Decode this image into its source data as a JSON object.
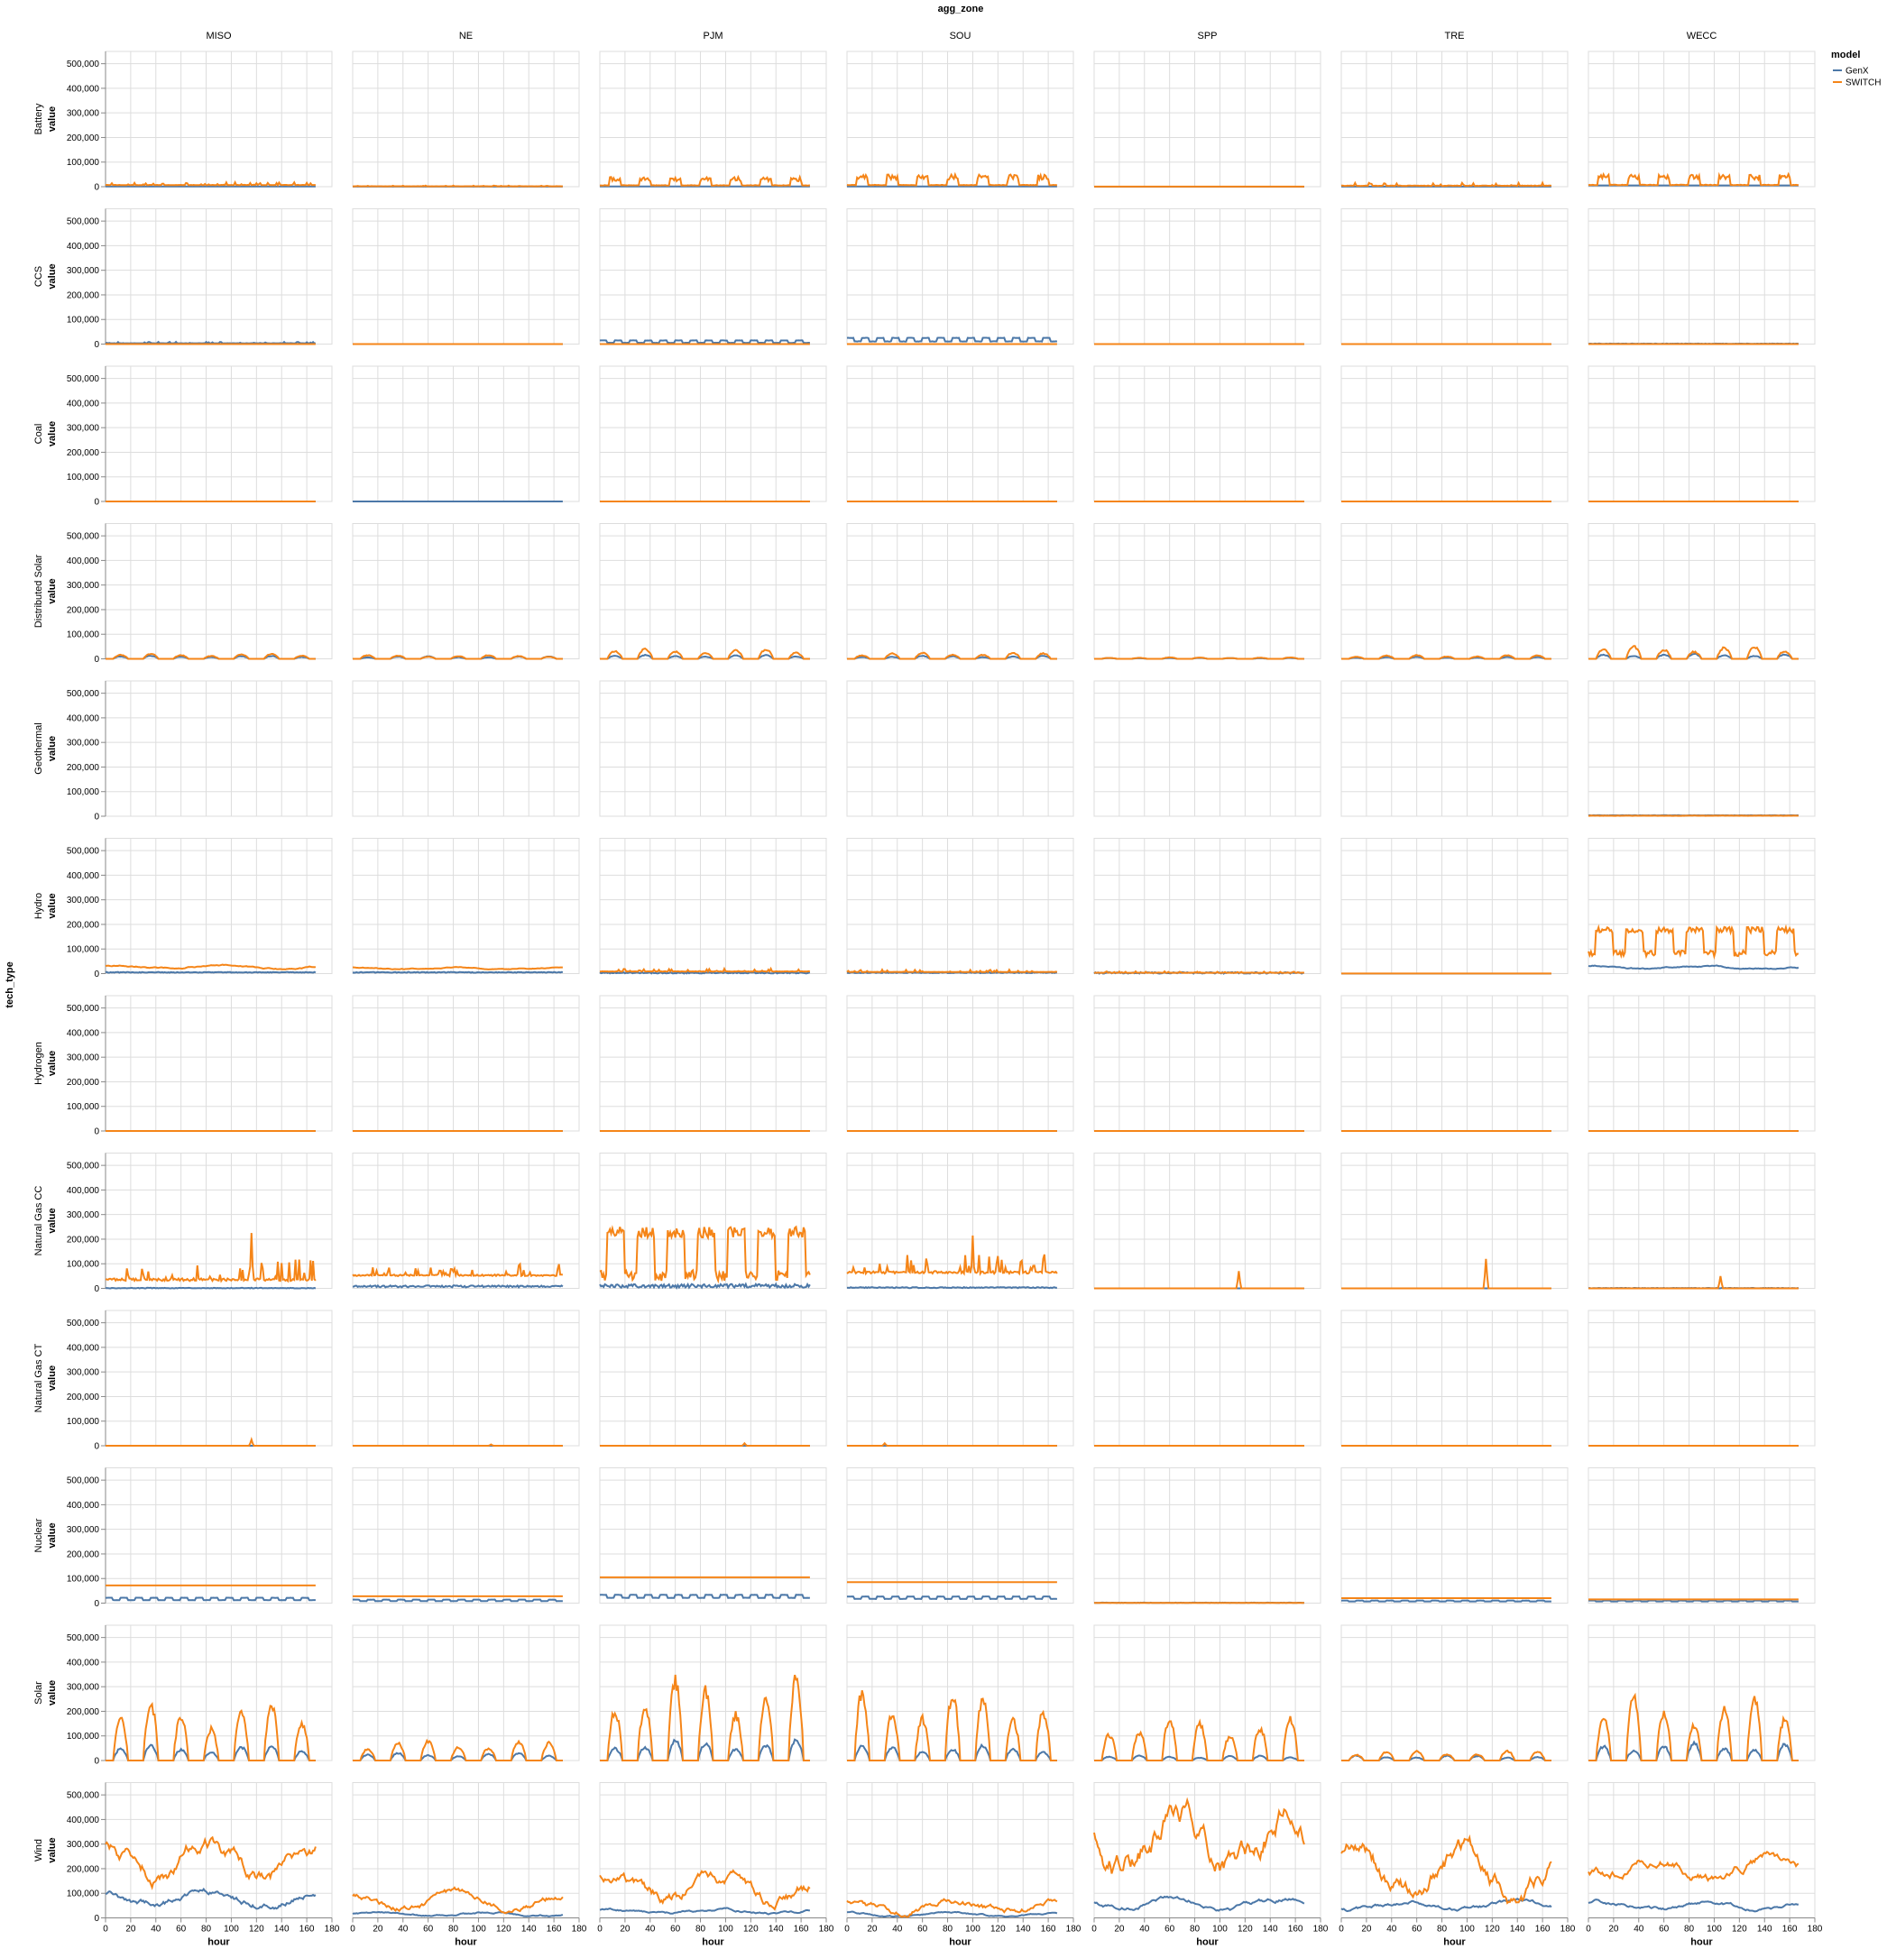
{
  "chart_data": {
    "type": "line",
    "facet_column_title": "agg_zone",
    "facet_row_title": "tech_type",
    "columns": [
      "MISO",
      "NE",
      "PJM",
      "SOU",
      "SPP",
      "TRE",
      "WECC"
    ],
    "rows": [
      "Battery",
      "CCS",
      "Coal",
      "Distributed Solar",
      "Geothermal",
      "Hydro",
      "Hydrogen",
      "Natural Gas CC",
      "Natural Gas CT",
      "Nuclear",
      "Solar",
      "Wind"
    ],
    "xlabel": "hour",
    "ylabel": "value",
    "xlim": [
      0,
      180
    ],
    "ylim": [
      0,
      550000
    ],
    "x_ticks": [
      0,
      20,
      40,
      60,
      80,
      100,
      120,
      140,
      160,
      180
    ],
    "y_ticks": [
      0,
      100000,
      200000,
      300000,
      400000,
      500000
    ],
    "y_tick_labels": [
      "0",
      "100,000",
      "200,000",
      "300,000",
      "400,000",
      "500,000"
    ],
    "grid": true,
    "legend": {
      "title": "model",
      "position": "top-right"
    },
    "hours": {
      "start": 0,
      "end": 167
    },
    "series": [
      {
        "name": "GenX",
        "color": "#4c78a8"
      },
      {
        "name": "SWITCH",
        "color": "#f58518"
      }
    ],
    "panels": {
      "Battery": {
        "MISO": {
          "GenX": 1000,
          "SWITCH": 6000,
          "SWITCH_amp": 12000,
          "SWITCH_pattern": "spiky"
        },
        "NE": {
          "GenX": 500,
          "SWITCH": 1500,
          "SWITCH_amp": 3000,
          "SWITCH_pattern": "spiky"
        },
        "PJM": {
          "GenX": 1000,
          "SWITCH": 15000,
          "SWITCH_amp": 35000,
          "SWITCH_pattern": "daily_spiky"
        },
        "SOU": {
          "GenX": 1000,
          "SWITCH": 18000,
          "SWITCH_amp": 45000,
          "SWITCH_pattern": "daily_spiky"
        },
        "SPP": {
          "GenX": 0,
          "SWITCH": 500,
          "SWITCH_amp": 0,
          "SWITCH_pattern": "flat"
        },
        "TRE": {
          "GenX": 500,
          "SWITCH": 3000,
          "SWITCH_amp": 15000,
          "SWITCH_pattern": "spiky"
        },
        "WECC": {
          "GenX": 5000,
          "SWITCH": 20000,
          "SWITCH_amp": 45000,
          "SWITCH_pattern": "daily_spiky"
        }
      },
      "CCS": {
        "MISO": {
          "GenX": 3000,
          "GenX_amp": 6000,
          "GenX_pattern": "spiky",
          "SWITCH": 0
        },
        "NE": {
          "GenX": 0,
          "SWITCH": 0
        },
        "PJM": {
          "GenX": 8000,
          "GenX_amp": 8000,
          "GenX_pattern": "steps",
          "SWITCH": 0
        },
        "SOU": {
          "GenX": 15000,
          "GenX_amp": 12000,
          "GenX_pattern": "steps",
          "SWITCH": 0
        },
        "SPP": {
          "GenX": 0,
          "SWITCH": 0
        },
        "TRE": {
          "GenX": 0,
          "SWITCH": 0
        },
        "WECC": {
          "GenX": 1500,
          "GenX_amp": 1500,
          "GenX_pattern": "noise",
          "SWITCH": 0
        }
      },
      "Coal": {
        "MISO": {
          "GenX": 0,
          "SWITCH": 0
        },
        "NE": {
          "GenX": 0,
          "SWITCH": null
        },
        "PJM": {
          "GenX": 0,
          "SWITCH": 0
        },
        "SOU": {
          "GenX": 0,
          "SWITCH": 0
        },
        "SPP": {
          "GenX": 0,
          "SWITCH": 0
        },
        "TRE": {
          "GenX": 0,
          "SWITCH": 0
        },
        "WECC": {
          "GenX": 0,
          "SWITCH": 0
        }
      },
      "Distributed Solar": {
        "MISO": {
          "GenX": 0,
          "GenX_amp": 12000,
          "GenX_pattern": "solar",
          "SWITCH": 0,
          "SWITCH_amp": 20000,
          "SWITCH_pattern": "solar"
        },
        "NE": {
          "GenX": 0,
          "GenX_amp": 10000,
          "GenX_pattern": "solar",
          "SWITCH": 0,
          "SWITCH_amp": 15000,
          "SWITCH_pattern": "solar"
        },
        "PJM": {
          "GenX": 0,
          "GenX_amp": 15000,
          "GenX_pattern": "solar",
          "SWITCH": 0,
          "SWITCH_amp": 40000,
          "SWITCH_pattern": "solar"
        },
        "SOU": {
          "GenX": 0,
          "GenX_amp": 12000,
          "GenX_pattern": "solar",
          "SWITCH": 0,
          "SWITCH_amp": 25000,
          "SWITCH_pattern": "solar"
        },
        "SPP": {
          "GenX": 0,
          "GenX_amp": 4000,
          "GenX_pattern": "solar",
          "SWITCH": 0,
          "SWITCH_amp": 6000,
          "SWITCH_pattern": "solar"
        },
        "TRE": {
          "GenX": 0,
          "GenX_amp": 8000,
          "GenX_pattern": "solar",
          "SWITCH": 0,
          "SWITCH_amp": 15000,
          "SWITCH_pattern": "solar"
        },
        "WECC": {
          "GenX": 0,
          "GenX_amp": 20000,
          "GenX_pattern": "solar",
          "SWITCH": 0,
          "SWITCH_amp": 50000,
          "SWITCH_pattern": "solar"
        }
      },
      "Geothermal": {
        "MISO": null,
        "NE": null,
        "PJM": null,
        "SOU": null,
        "SPP": null,
        "TRE": null,
        "WECC": {
          "GenX": 3500,
          "GenX_amp": 1000,
          "GenX_pattern": "noise",
          "SWITCH": 2000,
          "SWITCH_amp": 1000,
          "SWITCH_pattern": "noise"
        }
      },
      "Hydro": {
        "MISO": {
          "GenX": 5000,
          "GenX_amp": 3000,
          "GenX_pattern": "noise",
          "SWITCH": 28000,
          "SWITCH_amp": 10000,
          "SWITCH_pattern": "wave"
        },
        "NE": {
          "GenX": 5000,
          "GenX_amp": 3000,
          "GenX_pattern": "noise",
          "SWITCH": 22000,
          "SWITCH_amp": 6000,
          "SWITCH_pattern": "wave"
        },
        "PJM": {
          "GenX": 3000,
          "GenX_amp": 5000,
          "GenX_pattern": "noise",
          "SWITCH": 8000,
          "SWITCH_amp": 12000,
          "SWITCH_pattern": "spiky"
        },
        "SOU": {
          "GenX": 4000,
          "GenX_amp": 4000,
          "GenX_pattern": "noise",
          "SWITCH": 6000,
          "SWITCH_amp": 10000,
          "SWITCH_pattern": "spiky"
        },
        "SPP": {
          "GenX": 3000,
          "GenX_amp": 6000,
          "GenX_pattern": "noise",
          "SWITCH": 3000,
          "SWITCH_amp": 6000,
          "SWITCH_pattern": "spiky"
        },
        "TRE": {
          "GenX": 0,
          "SWITCH": 500
        },
        "WECC": {
          "GenX": 25000,
          "GenX_amp": 10000,
          "GenX_pattern": "wave",
          "SWITCH": 130000,
          "SWITCH_amp": 60000,
          "SWITCH_pattern": "blocky"
        }
      },
      "Hydrogen": {
        "MISO": {
          "GenX": 0,
          "SWITCH": 0
        },
        "NE": {
          "GenX": 0,
          "SWITCH": 0
        },
        "PJM": {
          "GenX": 0,
          "SWITCH": 0
        },
        "SOU": {
          "GenX": 0,
          "SWITCH": 0
        },
        "SPP": {
          "GenX": 0,
          "SWITCH": 0
        },
        "TRE": {
          "GenX": 0,
          "SWITCH": 0
        },
        "WECC": {
          "GenX": 0,
          "SWITCH": 0
        }
      },
      "Natural Gas CC": {
        "MISO": {
          "GenX": 1000,
          "GenX_amp": 3000,
          "GenX_pattern": "noise",
          "SWITCH": 30000,
          "SWITCH_amp": 90000,
          "SWITCH_pattern": "spiky",
          "SWITCH_peak": [
            116,
            225000
          ]
        },
        "NE": {
          "GenX": 8000,
          "GenX_amp": 8000,
          "GenX_pattern": "noise",
          "SWITCH": 50000,
          "SWITCH_amp": 50000,
          "SWITCH_pattern": "spiky"
        },
        "PJM": {
          "GenX": 10000,
          "GenX_amp": 15000,
          "GenX_pattern": "noise",
          "SWITCH": 140000,
          "SWITCH_amp": 110000,
          "SWITCH_pattern": "blocky"
        },
        "SOU": {
          "GenX": 3000,
          "GenX_amp": 4000,
          "GenX_pattern": "noise",
          "SWITCH": 60000,
          "SWITCH_amp": 80000,
          "SWITCH_pattern": "spiky",
          "SWITCH_peak": [
            100,
            215000
          ]
        },
        "SPP": {
          "GenX": 0,
          "SWITCH": 0,
          "SWITCH_peak": [
            115,
            70000
          ]
        },
        "TRE": {
          "GenX": 0,
          "SWITCH": 0,
          "SWITCH_peak": [
            115,
            120000
          ]
        },
        "WECC": {
          "GenX": 1000,
          "GenX_amp": 2000,
          "GenX_pattern": "noise",
          "SWITCH": 0,
          "SWITCH_peak": [
            105,
            50000
          ]
        }
      },
      "Natural Gas CT": {
        "MISO": {
          "GenX": 0,
          "SWITCH": 0,
          "SWITCH_peak": [
            116,
            25000
          ]
        },
        "NE": {
          "GenX": 0,
          "SWITCH": 0,
          "SWITCH_peak": [
            110,
            5000
          ]
        },
        "PJM": {
          "GenX": 0,
          "SWITCH": 0,
          "SWITCH_peak": [
            115,
            10000
          ]
        },
        "SOU": {
          "GenX": 0,
          "SWITCH": 0,
          "SWITCH_peak": [
            30,
            10000
          ]
        },
        "SPP": {
          "GenX": 0,
          "SWITCH": 0
        },
        "TRE": {
          "GenX": 0,
          "SWITCH": 0
        },
        "WECC": {
          "GenX": 0,
          "SWITCH": 0
        }
      },
      "Nuclear": {
        "MISO": {
          "GenX": 15000,
          "GenX_amp": 8000,
          "GenX_pattern": "steps",
          "SWITCH": 72000
        },
        "NE": {
          "GenX": 10000,
          "GenX_amp": 5000,
          "GenX_pattern": "steps",
          "SWITCH": 28000
        },
        "PJM": {
          "GenX": 25000,
          "GenX_amp": 10000,
          "GenX_pattern": "steps",
          "SWITCH": 105000
        },
        "SOU": {
          "GenX": 20000,
          "GenX_amp": 8000,
          "GenX_pattern": "steps",
          "SWITCH": 85000
        },
        "SPP": {
          "GenX": 1500,
          "GenX_amp": 1500,
          "GenX_pattern": "noise",
          "SWITCH": 1000
        },
        "TRE": {
          "GenX": 8000,
          "GenX_amp": 3000,
          "GenX_pattern": "steps",
          "SWITCH": 20000
        },
        "WECC": {
          "GenX": 8000,
          "GenX_amp": 3000,
          "GenX_pattern": "steps",
          "SWITCH": 15000
        }
      },
      "Solar": {
        "MISO": {
          "GenX": 0,
          "GenX_amp": 60000,
          "GenX_pattern": "solar",
          "SWITCH": 0,
          "SWITCH_amp": 230000,
          "SWITCH_pattern": "solar"
        },
        "NE": {
          "GenX": 0,
          "GenX_amp": 30000,
          "GenX_pattern": "solar",
          "SWITCH": 0,
          "SWITCH_amp": 80000,
          "SWITCH_pattern": "solar"
        },
        "PJM": {
          "GenX": 0,
          "GenX_amp": 80000,
          "GenX_pattern": "solar",
          "SWITCH": 0,
          "SWITCH_amp": 330000,
          "SWITCH_pattern": "solar"
        },
        "SOU": {
          "GenX": 0,
          "GenX_amp": 60000,
          "GenX_pattern": "solar",
          "SWITCH": 0,
          "SWITCH_amp": 280000,
          "SWITCH_pattern": "solar"
        },
        "SPP": {
          "GenX": 0,
          "GenX_amp": 20000,
          "GenX_pattern": "solar",
          "SWITCH": 0,
          "SWITCH_amp": 170000,
          "SWITCH_pattern": "solar"
        },
        "TRE": {
          "GenX": 0,
          "GenX_amp": 20000,
          "GenX_pattern": "solar",
          "SWITCH": 0,
          "SWITCH_amp": 40000,
          "SWITCH_pattern": "solar"
        },
        "WECC": {
          "GenX": 0,
          "GenX_amp": 70000,
          "GenX_pattern": "solar",
          "SWITCH": 0,
          "SWITCH_amp": 250000,
          "SWITCH_pattern": "solar"
        }
      },
      "Wind": {
        "MISO": {
          "GenX": 80000,
          "GenX_amp": 45000,
          "GenX_pattern": "wave",
          "SWITCH": 230000,
          "SWITCH_amp": 110000,
          "SWITCH_pattern": "wave"
        },
        "NE": {
          "GenX": 15000,
          "GenX_amp": 12000,
          "GenX_pattern": "wave",
          "SWITCH": 70000,
          "SWITCH_amp": 45000,
          "SWITCH_pattern": "wave"
        },
        "PJM": {
          "GenX": 25000,
          "GenX_amp": 15000,
          "GenX_pattern": "wave",
          "SWITCH": 120000,
          "SWITCH_amp": 90000,
          "SWITCH_pattern": "wave"
        },
        "SOU": {
          "GenX": 15000,
          "GenX_amp": 12000,
          "GenX_pattern": "wave",
          "SWITCH": 50000,
          "SWITCH_amp": 45000,
          "SWITCH_pattern": "wave"
        },
        "SPP": {
          "GenX": 60000,
          "GenX_amp": 30000,
          "GenX_pattern": "wave",
          "SWITCH": 330000,
          "SWITCH_amp": 180000,
          "SWITCH_pattern": "wave"
        },
        "TRE": {
          "GenX": 50000,
          "GenX_amp": 25000,
          "GenX_pattern": "wave",
          "SWITCH": 190000,
          "SWITCH_amp": 130000,
          "SWITCH_pattern": "wave"
        },
        "WECC": {
          "GenX": 50000,
          "GenX_amp": 25000,
          "GenX_pattern": "wave",
          "SWITCH": 210000,
          "SWITCH_amp": 70000,
          "SWITCH_pattern": "wave"
        }
      }
    }
  }
}
